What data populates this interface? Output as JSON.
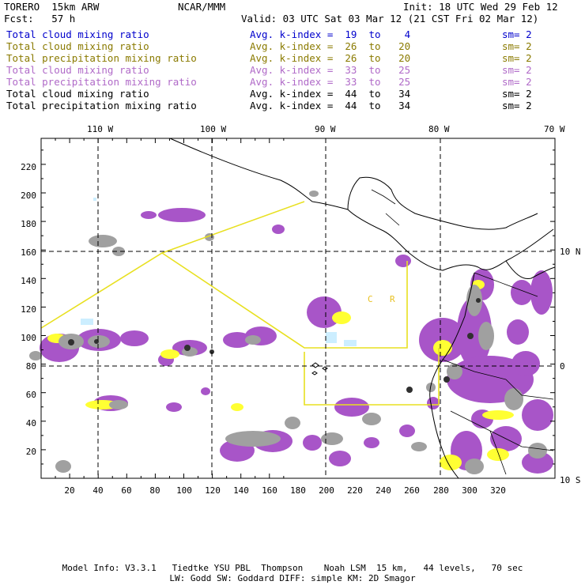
{
  "header": {
    "model": "TORERO  15km ARW",
    "org": "NCAR/MMM",
    "init": "Init: 18 UTC Wed 29 Feb 12",
    "fcst": "Fcst:   57 h",
    "valid": "Valid: 03 UTC Sat 03 Mar 12 (21 CST Fri 02 Mar 12)"
  },
  "legend": [
    {
      "field": "Total cloud mixing ratio",
      "kindex": "Avg. k-index =  19  to    4",
      "sm": "sm= 2",
      "color": "#0000cc"
    },
    {
      "field": "Total cloud mixing ratio",
      "kindex": "Avg. k-index =  26  to   20",
      "sm": "sm= 2",
      "color": "#8a7a00"
    },
    {
      "field": "Total precipitation mixing ratio",
      "kindex": "Avg. k-index =  26  to   20",
      "sm": "sm= 2",
      "color": "#8a7a00"
    },
    {
      "field": "Total cloud mixing ratio",
      "kindex": "Avg. k-index =  33  to   25",
      "sm": "sm= 2",
      "color": "#b06ac8"
    },
    {
      "field": "Total precipitation mixing ratio",
      "kindex": "Avg. k-index =  33  to   25",
      "sm": "sm= 2",
      "color": "#b06ac8"
    },
    {
      "field": "Total cloud mixing ratio",
      "kindex": "Avg. k-index =  44  to   34",
      "sm": "sm= 2",
      "color": "#000000"
    },
    {
      "field": "Total precipitation mixing ratio",
      "kindex": "Avg. k-index =  44  to   34",
      "sm": "sm= 2",
      "color": "#000000"
    }
  ],
  "map": {
    "lon_labels": [
      "110 W",
      "100 W",
      "90 W",
      "80 W",
      "70 W"
    ],
    "lat_labels": [
      "10 N",
      "0",
      "10 S"
    ],
    "x_ticks": [
      "20",
      "40",
      "60",
      "80",
      "100",
      "120",
      "140",
      "160",
      "180",
      "200",
      "220",
      "240",
      "260",
      "280",
      "300",
      "320"
    ],
    "y_ticks": [
      "20",
      "40",
      "60",
      "80",
      "100",
      "120",
      "140",
      "160",
      "180",
      "200",
      "220"
    ],
    "inner_labels": [
      "C",
      "R"
    ],
    "colors": {
      "gray": "#a0a0a0",
      "dark": "#303030",
      "purple": "#a855c8",
      "yellow": "#ffff33",
      "lightblue": "#cceeff",
      "domain_box": "#e8e020"
    }
  },
  "footer": {
    "line1": "Model Info: V3.3.1   Tiedtke YSU PBL  Thompson    Noah LSM  15 km,   44 levels,   70 sec",
    "line2": "LW: Godd SW: Goddard DIFF: simple KM: 2D Smagor"
  }
}
